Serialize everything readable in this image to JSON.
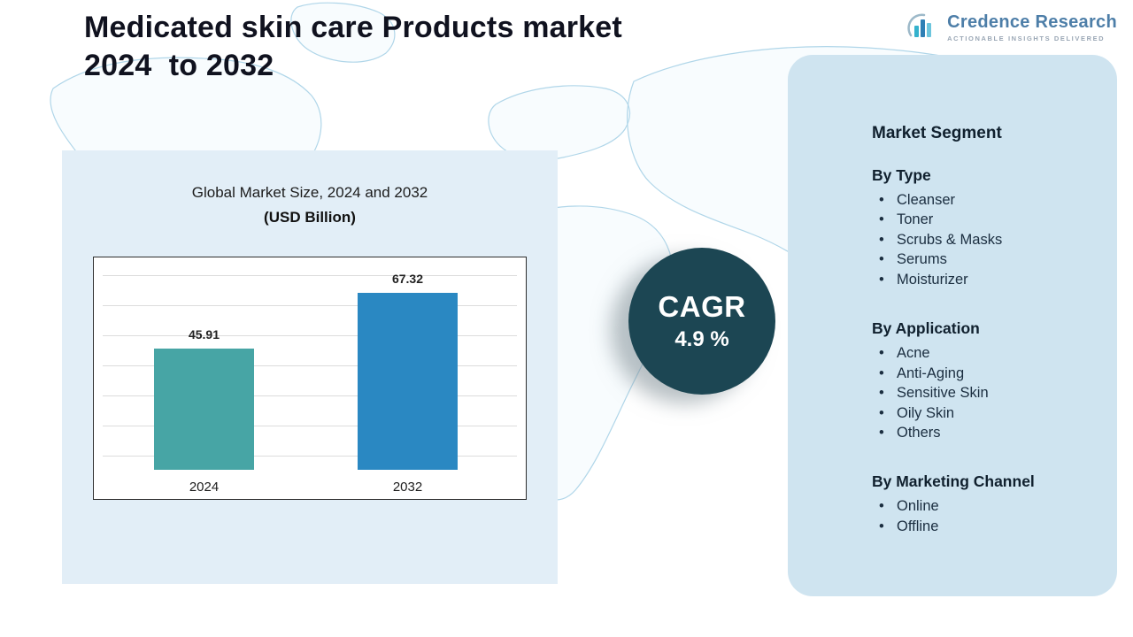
{
  "header": {
    "title": "Medicated skin care Products market\n2024  to 2032",
    "logo": {
      "name": "Credence Research",
      "tagline": "Actionable Insights Delivered"
    }
  },
  "chart_data": {
    "type": "bar",
    "title": "Global Market Size, 2024 and 2032",
    "subtitle": "(USD Billion)",
    "categories": [
      "2024",
      "2032"
    ],
    "values": [
      45.91,
      67.32
    ],
    "bar_colors": [
      "#47a5a5",
      "#2a88c2"
    ],
    "ylabel": "USD Billion",
    "ylim": [
      0,
      80
    ],
    "grid": true,
    "legend": "none"
  },
  "cagr": {
    "label": "CAGR",
    "value": "4.9 %",
    "circle_color": "#1c4653"
  },
  "segments": {
    "heading": "Market Segment",
    "groups": [
      {
        "title": "By Type",
        "items": [
          "Cleanser",
          "Toner",
          "Scrubs & Masks",
          "Serums",
          "Moisturizer"
        ]
      },
      {
        "title": "By Application",
        "items": [
          "Acne",
          "Anti-Aging",
          "Sensitive Skin",
          "Oily Skin",
          "Others"
        ]
      },
      {
        "title": "By Marketing Channel",
        "items": [
          "Online",
          "Offline"
        ]
      }
    ]
  },
  "colors": {
    "panel_left": "#e2eef7",
    "panel_right": "#cfe4f0",
    "map_stroke": "#b0d6e9",
    "title_text": "#10121f",
    "logo_blue": "#4d7ea8"
  }
}
